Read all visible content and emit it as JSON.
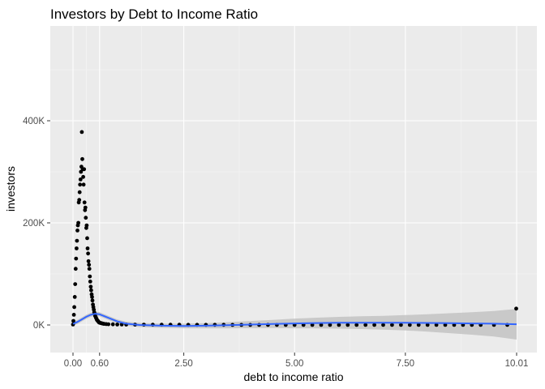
{
  "chart_data": {
    "type": "scatter",
    "title": "Investors by Debt to Income Ratio",
    "xlabel": "debt to income ratio",
    "ylabel": "investors",
    "x_ticks": [
      {
        "value": 0.0,
        "label": "0.00"
      },
      {
        "value": 0.6,
        "label": "0.60"
      },
      {
        "value": 2.5,
        "label": "2.50"
      },
      {
        "value": 5.0,
        "label": "5.00"
      },
      {
        "value": 7.5,
        "label": "7.50"
      },
      {
        "value": 10.01,
        "label": "10.01"
      }
    ],
    "y_ticks": [
      {
        "value": 0,
        "label": "0K"
      },
      {
        "value": 200000,
        "label": "200K"
      },
      {
        "value": 400000,
        "label": "400K"
      }
    ],
    "xlim": [
      -0.5,
      10.5
    ],
    "ylim": [
      -50000,
      560000
    ],
    "grid": true,
    "smooth_trend": {
      "color": "#3366ff",
      "band_color": "#bdbdbd",
      "x": [
        0.0,
        0.1,
        0.2,
        0.3,
        0.4,
        0.5,
        0.6,
        0.8,
        1.0,
        1.2,
        1.5,
        2.0,
        2.5,
        3.0,
        3.5,
        4.0,
        4.5,
        5.0,
        5.5,
        6.0,
        6.5,
        7.0,
        7.5,
        8.0,
        8.5,
        9.0,
        9.5,
        10.01
      ],
      "y": [
        2000,
        6000,
        11000,
        16000,
        20000,
        22000,
        21000,
        14000,
        7000,
        2500,
        0,
        -1500,
        -2000,
        -1500,
        -500,
        800,
        2000,
        3000,
        3800,
        4300,
        4500,
        4500,
        4300,
        4000,
        3500,
        3000,
        2500,
        1500
      ],
      "band_halfwidth": [
        4000,
        4000,
        4000,
        4000,
        4000,
        4000,
        4000,
        4000,
        4000,
        4000,
        4000,
        4000,
        4500,
        5000,
        6000,
        7000,
        8000,
        9500,
        10500,
        11500,
        12500,
        13500,
        15000,
        17000,
        19500,
        22000,
        25000,
        30000
      ]
    },
    "series": [
      {
        "points": [
          [
            0.0,
            1000
          ],
          [
            0.01,
            8000
          ],
          [
            0.02,
            20000
          ],
          [
            0.03,
            35000
          ],
          [
            0.04,
            55000
          ],
          [
            0.05,
            80000
          ],
          [
            0.06,
            110000
          ],
          [
            0.07,
            130000
          ],
          [
            0.08,
            150000
          ],
          [
            0.09,
            165000
          ],
          [
            0.1,
            185000
          ],
          [
            0.11,
            195000
          ],
          [
            0.12,
            200000
          ],
          [
            0.13,
            240000
          ],
          [
            0.14,
            245000
          ],
          [
            0.15,
            260000
          ],
          [
            0.16,
            275000
          ],
          [
            0.17,
            285000
          ],
          [
            0.18,
            300000
          ],
          [
            0.19,
            310000
          ],
          [
            0.2,
            378000
          ],
          [
            0.21,
            325000
          ],
          [
            0.22,
            305000
          ],
          [
            0.23,
            290000
          ],
          [
            0.24,
            275000
          ],
          [
            0.25,
            305000
          ],
          [
            0.26,
            240000
          ],
          [
            0.27,
            225000
          ],
          [
            0.28,
            230000
          ],
          [
            0.29,
            210000
          ],
          [
            0.3,
            190000
          ],
          [
            0.31,
            195000
          ],
          [
            0.32,
            170000
          ],
          [
            0.33,
            150000
          ],
          [
            0.34,
            140000
          ],
          [
            0.35,
            125000
          ],
          [
            0.36,
            118000
          ],
          [
            0.37,
            110000
          ],
          [
            0.38,
            95000
          ],
          [
            0.39,
            85000
          ],
          [
            0.4,
            75000
          ],
          [
            0.41,
            68000
          ],
          [
            0.42,
            60000
          ],
          [
            0.43,
            55000
          ],
          [
            0.44,
            48000
          ],
          [
            0.45,
            40000
          ],
          [
            0.46,
            35000
          ],
          [
            0.47,
            30000
          ],
          [
            0.48,
            25000
          ],
          [
            0.49,
            22000
          ],
          [
            0.5,
            18000
          ],
          [
            0.51,
            16000
          ],
          [
            0.52,
            14000
          ],
          [
            0.53,
            12000
          ],
          [
            0.54,
            10000
          ],
          [
            0.55,
            9000
          ],
          [
            0.56,
            8000
          ],
          [
            0.57,
            7000
          ],
          [
            0.58,
            6000
          ],
          [
            0.59,
            5000
          ],
          [
            0.6,
            4500
          ],
          [
            0.62,
            4000
          ],
          [
            0.64,
            3500
          ],
          [
            0.66,
            3000
          ],
          [
            0.68,
            2500
          ],
          [
            0.7,
            2200
          ],
          [
            0.75,
            1800
          ],
          [
            0.8,
            1500
          ],
          [
            0.9,
            1200
          ],
          [
            1.0,
            1000
          ],
          [
            1.1,
            900
          ],
          [
            1.2,
            800
          ],
          [
            1.4,
            700
          ],
          [
            1.6,
            600
          ],
          [
            1.8,
            500
          ],
          [
            2.0,
            500
          ],
          [
            2.2,
            400
          ],
          [
            2.4,
            400
          ],
          [
            2.6,
            300
          ],
          [
            2.8,
            300
          ],
          [
            3.0,
            300
          ],
          [
            3.2,
            250
          ],
          [
            3.4,
            250
          ],
          [
            3.6,
            200
          ],
          [
            3.8,
            200
          ],
          [
            4.0,
            200
          ],
          [
            4.2,
            200
          ],
          [
            4.4,
            150
          ],
          [
            4.6,
            150
          ],
          [
            4.8,
            150
          ],
          [
            5.0,
            150
          ],
          [
            5.2,
            150
          ],
          [
            5.4,
            100
          ],
          [
            5.6,
            100
          ],
          [
            5.8,
            100
          ],
          [
            6.0,
            100
          ],
          [
            6.2,
            100
          ],
          [
            6.4,
            100
          ],
          [
            6.6,
            100
          ],
          [
            6.8,
            100
          ],
          [
            7.0,
            100
          ],
          [
            7.2,
            100
          ],
          [
            7.4,
            100
          ],
          [
            7.6,
            100
          ],
          [
            7.8,
            100
          ],
          [
            8.0,
            100
          ],
          [
            8.2,
            100
          ],
          [
            8.4,
            100
          ],
          [
            8.6,
            100
          ],
          [
            8.8,
            100
          ],
          [
            9.0,
            100
          ],
          [
            9.2,
            100
          ],
          [
            9.5,
            100
          ],
          [
            9.8,
            100
          ],
          [
            10.0,
            32000
          ]
        ]
      }
    ]
  }
}
